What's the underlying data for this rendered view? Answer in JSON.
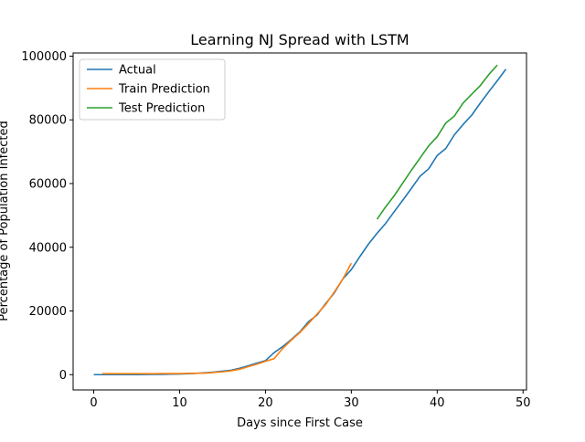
{
  "chart_data": {
    "type": "line",
    "title": "Learning NJ Spread with LSTM",
    "xlabel": "Days since First Case",
    "ylabel": "Percentage of Population Infected",
    "xlim": [
      -2.4,
      50.4
    ],
    "ylim": [
      -4800,
      101000
    ],
    "xticks": [
      0,
      10,
      20,
      30,
      40,
      50
    ],
    "xtick_labels": [
      "0",
      "10",
      "20",
      "30",
      "40",
      "50"
    ],
    "yticks": [
      0,
      20000,
      40000,
      60000,
      80000,
      100000
    ],
    "ytick_labels": [
      "0",
      "20000",
      "40000",
      "60000",
      "80000",
      "100000"
    ],
    "grid": false,
    "legend_position": "upper-left",
    "series": [
      {
        "name": "Actual",
        "color": "#1f77b4",
        "x": [
          0,
          1,
          2,
          3,
          4,
          5,
          6,
          7,
          8,
          9,
          10,
          11,
          12,
          13,
          14,
          15,
          16,
          17,
          18,
          19,
          20,
          21,
          22,
          23,
          24,
          25,
          26,
          27,
          28,
          29,
          30,
          31,
          32,
          33,
          34,
          35,
          36,
          37,
          38,
          39,
          40,
          41,
          42,
          43,
          44,
          45,
          46,
          47,
          48
        ],
        "y": [
          0,
          0,
          0,
          0,
          0,
          30,
          50,
          80,
          100,
          150,
          200,
          300,
          400,
          600,
          800,
          1100,
          1400,
          2000,
          2800,
          3600,
          4400,
          6900,
          8800,
          11000,
          13400,
          16600,
          18700,
          22300,
          25600,
          30000,
          33000,
          37100,
          41000,
          44400,
          47500,
          51200,
          54800,
          58500,
          62300,
          64600,
          68800,
          71000,
          75300,
          78500,
          81400,
          85200,
          88800,
          92300,
          95900
        ]
      },
      {
        "name": "Train Prediction",
        "color": "#ff7f0e",
        "x": [
          1,
          2,
          3,
          4,
          5,
          6,
          7,
          8,
          9,
          10,
          11,
          12,
          13,
          14,
          15,
          16,
          17,
          18,
          19,
          20,
          21,
          22,
          23,
          24,
          25,
          26,
          27,
          28,
          29,
          30
        ],
        "y": [
          300,
          300,
          300,
          300,
          300,
          300,
          300,
          350,
          350,
          350,
          400,
          450,
          500,
          700,
          900,
          1200,
          1700,
          2500,
          3300,
          4200,
          5000,
          8200,
          10800,
          13200,
          16000,
          19000,
          22000,
          25900,
          30000,
          35000
        ]
      },
      {
        "name": "Test Prediction",
        "color": "#2ca02c",
        "x": [
          33,
          34,
          35,
          36,
          37,
          38,
          39,
          40,
          41,
          42,
          43,
          44,
          45,
          46,
          47
        ],
        "y": [
          48800,
          52700,
          56200,
          60200,
          64200,
          68000,
          71800,
          74700,
          79000,
          81200,
          85200,
          88000,
          90700,
          94200,
          97200
        ]
      }
    ]
  }
}
